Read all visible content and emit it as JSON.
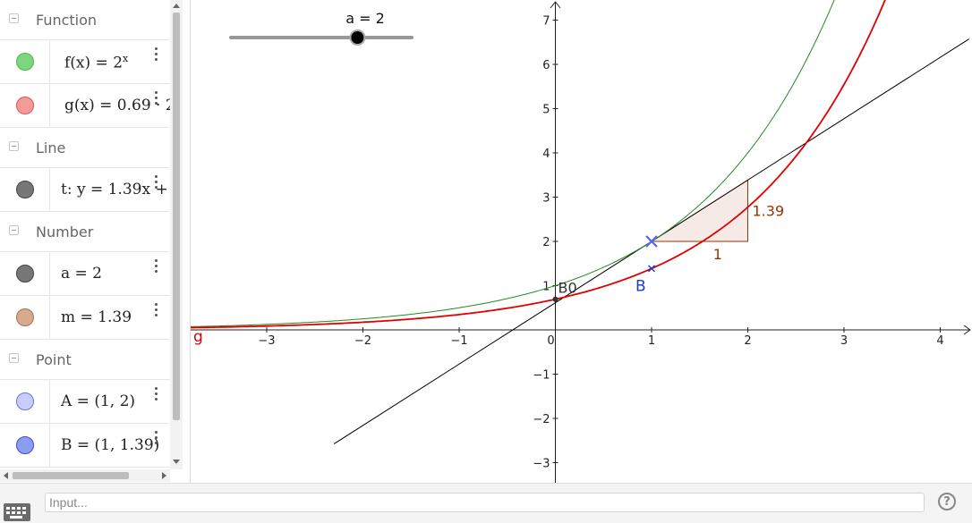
{
  "algebra": {
    "groups": [
      {
        "label": "Function",
        "items": [
          {
            "name": "f-expression",
            "color": "#48b848",
            "text": "f(x)  =  2",
            "sup": "x"
          },
          {
            "name": "g-expression",
            "color": "#f07070",
            "text": "g(x)  =  0.69 · 2",
            "sup": ""
          }
        ]
      },
      {
        "label": "Line",
        "items": [
          {
            "name": "t-expression",
            "color": "#777777",
            "text": "t: y = 1.39x + ",
            "sup": ""
          }
        ]
      },
      {
        "label": "Number",
        "items": [
          {
            "name": "a-expression",
            "color": "#777777",
            "text": "a  =  2",
            "sup": ""
          },
          {
            "name": "m-expression",
            "color": "#d9a98c",
            "text": "m  =  1.39",
            "sup": ""
          }
        ]
      },
      {
        "label": "Point",
        "items": [
          {
            "name": "point-a-expression",
            "color": "#c9ccff",
            "text": "A  =  (1, 2)",
            "sup": ""
          },
          {
            "name": "point-b-expression",
            "color": "#8c9df0",
            "text": "B  =  (1, 1.39)",
            "sup": ""
          }
        ]
      }
    ]
  },
  "slider": {
    "label": "a = 2",
    "value": 2,
    "min": -5,
    "max": 5
  },
  "graph": {
    "x_ticks": [
      "−3",
      "−2",
      "−1",
      "0",
      "1",
      "2",
      "3",
      "4"
    ],
    "y_ticks": [
      "7",
      "6",
      "5",
      "4",
      "3",
      "2",
      "1",
      "−1",
      "−2",
      "−3"
    ],
    "labels": {
      "g": "g",
      "B0": "B0",
      "B": "B",
      "slope_run": "1",
      "slope_rise": "1.39"
    },
    "colors": {
      "f": "#228b22",
      "g": "#e00000",
      "tangent": "#000000",
      "slope": "#993300",
      "pointB": "#1a3ccc",
      "pointA": "#5566ee"
    }
  },
  "input": {
    "placeholder": "Input..."
  },
  "help": {
    "label": "?"
  }
}
